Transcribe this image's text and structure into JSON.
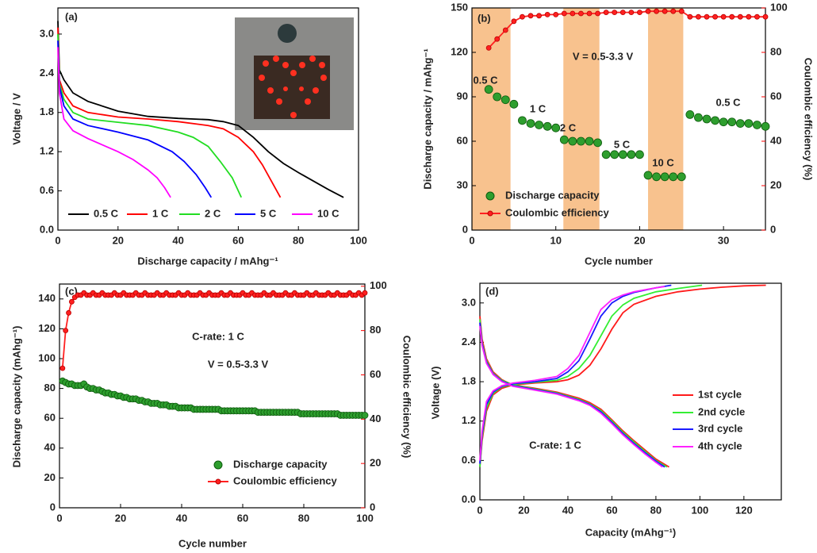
{
  "chart_data": [
    {
      "type": "line",
      "panel": "(a)",
      "xlabel": "Discharge capacity / mAhg⁻¹",
      "ylabel": "Voltage / V",
      "xlim": [
        0,
        100
      ],
      "xticks": [
        0,
        20,
        40,
        60,
        80,
        100
      ],
      "ylim": [
        0,
        3.4
      ],
      "yticks": [
        {
          "value": 0,
          "label": "0.0"
        },
        0.6,
        1.2,
        1.8,
        2.4,
        {
          "value": 3,
          "label": "3.0"
        }
      ],
      "series": [
        {
          "name": "0.5 C",
          "color": "#000000",
          "mode": "lines",
          "x": [
            0,
            0.5,
            2,
            5,
            10,
            20,
            30,
            40,
            50,
            55,
            60,
            65,
            70,
            75,
            80,
            85,
            90,
            95
          ],
          "values": [
            3.2,
            2.45,
            2.3,
            2.1,
            1.97,
            1.82,
            1.74,
            1.71,
            1.69,
            1.66,
            1.6,
            1.42,
            1.2,
            1.02,
            0.88,
            0.75,
            0.62,
            0.5
          ]
        },
        {
          "name": "1 C",
          "color": "#ff0000",
          "mode": "lines",
          "x": [
            0,
            0.5,
            2,
            5,
            10,
            20,
            30,
            40,
            50,
            55,
            60,
            65,
            68,
            71,
            74
          ],
          "values": [
            3.1,
            2.3,
            2.1,
            1.9,
            1.8,
            1.73,
            1.7,
            1.66,
            1.6,
            1.55,
            1.42,
            1.2,
            1.0,
            0.75,
            0.5
          ]
        },
        {
          "name": "2 C",
          "color": "#22dd22",
          "mode": "lines",
          "x": [
            0,
            0.5,
            2,
            5,
            10,
            20,
            30,
            40,
            45,
            50,
            54,
            58,
            61
          ],
          "values": [
            3.0,
            2.25,
            2.0,
            1.8,
            1.7,
            1.65,
            1.6,
            1.5,
            1.42,
            1.28,
            1.05,
            0.8,
            0.5
          ]
        },
        {
          "name": "5 C",
          "color": "#0000ff",
          "mode": "lines",
          "x": [
            0,
            0.5,
            2,
            5,
            10,
            20,
            30,
            38,
            42,
            46,
            49,
            51
          ],
          "values": [
            2.9,
            2.2,
            1.9,
            1.7,
            1.6,
            1.5,
            1.38,
            1.2,
            1.05,
            0.85,
            0.65,
            0.5
          ]
        },
        {
          "name": "10 C",
          "color": "#ff00ff",
          "mode": "lines",
          "x": [
            0,
            0.5,
            2,
            5,
            10,
            15,
            20,
            25,
            30,
            33,
            35.5,
            37.5
          ],
          "values": [
            2.8,
            2.1,
            1.7,
            1.52,
            1.4,
            1.3,
            1.2,
            1.08,
            0.92,
            0.8,
            0.65,
            0.5
          ]
        }
      ]
    },
    {
      "type": "line",
      "panel": "(b)",
      "xlabel": "Cycle number",
      "ylabel": "Discharge capacity / mAhg⁻¹",
      "y2label": "Coulombic efficiency (%)",
      "y2_color": "#ff0000",
      "annotations": [
        "V = 0.5-3.3 V",
        "0.5 C",
        "1 C",
        "2 C",
        "5 C",
        "10 C",
        "0.5 C"
      ],
      "highlight_x": [
        [
          0,
          4.6
        ],
        [
          10.9,
          15.2
        ],
        [
          21,
          25.2
        ]
      ],
      "highlight_color": "#f8c28e",
      "xlim": [
        0,
        35
      ],
      "xticks": [
        0,
        10,
        20,
        30
      ],
      "ylim": [
        0,
        150
      ],
      "yticks": [
        0,
        30,
        60,
        90,
        120,
        150
      ],
      "y2lim": [
        0,
        100
      ],
      "y2ticks": [
        0,
        20,
        40,
        60,
        80,
        100
      ],
      "x": [
        2,
        3,
        4,
        5,
        6,
        7,
        8,
        9,
        10,
        11,
        12,
        13,
        14,
        15,
        16,
        17,
        18,
        19,
        20,
        21,
        22,
        23,
        24,
        25,
        26,
        27,
        28,
        29,
        30,
        31,
        32,
        33,
        34,
        35
      ],
      "series": [
        {
          "name": "Discharge capacity",
          "color": "#2e9e2e",
          "mode": "markers",
          "values": [
            95,
            90,
            88,
            85,
            74,
            72,
            71,
            70,
            69,
            61,
            60,
            60,
            60,
            59,
            51,
            51,
            51,
            51,
            51,
            37,
            36,
            36,
            36,
            36,
            78,
            76,
            75,
            74,
            73,
            73,
            72,
            72,
            71,
            70
          ]
        },
        {
          "name": "Coulombic efficiency",
          "color": "#ff2020",
          "mode": "lines+markers",
          "axis": "y2",
          "values": [
            82,
            86,
            90,
            94,
            96,
            96.5,
            96.5,
            97,
            97,
            97.5,
            97.5,
            97.5,
            97.5,
            97.5,
            98,
            98,
            98,
            98,
            98,
            98.5,
            98.5,
            98.5,
            98.5,
            98.5,
            96,
            96,
            96,
            96,
            96,
            96,
            96,
            96,
            96,
            96
          ]
        }
      ]
    },
    {
      "type": "line",
      "panel": "(c)",
      "xlabel": "Cycle number",
      "ylabel": "Discharge capacity (mAhg⁻¹)",
      "y2label": "Coulombic efficiency (%)",
      "y2_color": "#ff0000",
      "annotations": [
        "C-rate: 1 C",
        "V = 0.5-3.3 V"
      ],
      "xlim": [
        0,
        100
      ],
      "xticks": [
        0,
        20,
        40,
        60,
        80,
        100
      ],
      "ylim": [
        0,
        150
      ],
      "yticks": [
        0,
        20,
        40,
        60,
        80,
        100,
        120,
        140
      ],
      "y2lim": [
        0,
        101
      ],
      "y2ticks": [
        0,
        20,
        40,
        60,
        80,
        100
      ],
      "x": [
        1,
        2,
        3,
        4,
        5,
        6,
        7,
        8,
        9,
        10,
        11,
        12,
        13,
        14,
        15,
        16,
        17,
        18,
        19,
        20,
        21,
        22,
        23,
        24,
        25,
        26,
        27,
        28,
        29,
        30,
        31,
        32,
        33,
        34,
        35,
        36,
        37,
        38,
        39,
        40,
        41,
        42,
        43,
        44,
        45,
        46,
        47,
        48,
        49,
        50,
        51,
        52,
        53,
        54,
        55,
        56,
        57,
        58,
        59,
        60,
        61,
        62,
        63,
        64,
        65,
        66,
        67,
        68,
        69,
        70,
        71,
        72,
        73,
        74,
        75,
        76,
        77,
        78,
        79,
        80,
        81,
        82,
        83,
        84,
        85,
        86,
        87,
        88,
        89,
        90,
        91,
        92,
        93,
        94,
        95,
        96,
        97,
        98,
        99,
        100
      ],
      "series": [
        {
          "name": "Discharge capacity",
          "color": "#2e9e2e",
          "mode": "markers",
          "values": [
            85,
            84,
            83,
            83,
            82,
            82,
            82,
            83,
            81,
            80,
            80,
            79,
            79,
            78,
            77,
            77,
            76,
            76,
            75,
            75,
            74,
            74,
            73,
            73,
            73,
            72,
            72,
            71,
            71,
            70,
            70,
            70,
            69,
            69,
            69,
            68,
            68,
            68,
            67,
            67,
            67,
            67,
            67,
            66,
            66,
            66,
            66,
            66,
            66,
            66,
            66,
            66,
            65,
            65,
            65,
            65,
            65,
            65,
            65,
            65,
            65,
            65,
            65,
            65,
            64,
            64,
            64,
            64,
            64,
            64,
            64,
            64,
            64,
            64,
            64,
            64,
            64,
            64,
            63,
            63,
            63,
            63,
            63,
            63,
            63,
            63,
            63,
            63,
            63,
            63,
            63,
            62,
            62,
            62,
            62,
            62,
            62,
            62,
            62,
            62
          ]
        },
        {
          "name": "Coulombic efficiency",
          "color": "#ff2020",
          "mode": "lines+markers",
          "axis": "y2",
          "values": [
            63,
            80,
            88,
            93,
            95,
            96,
            96,
            97,
            96,
            96,
            97,
            96,
            96,
            97,
            96,
            96,
            96,
            97,
            96,
            96,
            97,
            96,
            96,
            96,
            97,
            96,
            96,
            97,
            96,
            96,
            96,
            97,
            96,
            96,
            97,
            96,
            96,
            96,
            97,
            96,
            96,
            97,
            96,
            96,
            96,
            97,
            96,
            96,
            97,
            96,
            96,
            96,
            97,
            96,
            96,
            97,
            96,
            96,
            96,
            97,
            96,
            96,
            97,
            96,
            96,
            96,
            97,
            96,
            96,
            97,
            96,
            96,
            96,
            97,
            96,
            96,
            97,
            96,
            96,
            96,
            97,
            96,
            96,
            97,
            96,
            96,
            96,
            97,
            96,
            96,
            97,
            96,
            96,
            96,
            97,
            96,
            96,
            97,
            96,
            97
          ]
        }
      ]
    },
    {
      "type": "line",
      "panel": "(d)",
      "xlabel": "Capacity (mAhg⁻¹)",
      "ylabel": "Voltage (V)",
      "annotations": [
        "C-rate: 1 C"
      ],
      "xlim": [
        0,
        137
      ],
      "xticks": [
        0,
        20,
        40,
        60,
        80,
        100,
        120
      ],
      "ylim": [
        0,
        3.3
      ],
      "yticks": [
        {
          "value": 0,
          "label": "0.0"
        },
        0.6,
        1.2,
        1.8,
        2.4,
        {
          "value": 3,
          "label": "3.0"
        }
      ],
      "series": [
        {
          "name": "1st cycle",
          "color": "#ff1a1a",
          "mode": "lines",
          "x": [
            0,
            1,
            3,
            6,
            10,
            15,
            25,
            35,
            45,
            50,
            55,
            60,
            65,
            70,
            75,
            80,
            86,
            86,
            0,
            1,
            3,
            6,
            10,
            15,
            25,
            35,
            40,
            45,
            50,
            55,
            60,
            65,
            70,
            80,
            90,
            100,
            110,
            120,
            130
          ],
          "values": [
            2.8,
            2.45,
            2.15,
            1.95,
            1.83,
            1.75,
            1.7,
            1.64,
            1.55,
            1.48,
            1.38,
            1.22,
            1.05,
            0.9,
            0.76,
            0.62,
            0.5,
            null,
            0.5,
            0.9,
            1.35,
            1.6,
            1.7,
            1.75,
            1.78,
            1.8,
            1.83,
            1.9,
            2.05,
            2.3,
            2.6,
            2.85,
            2.98,
            3.1,
            3.17,
            3.21,
            3.24,
            3.26,
            3.27
          ]
        },
        {
          "name": "2nd cycle",
          "color": "#33ee33",
          "mode": "lines",
          "x": [
            0,
            1,
            3,
            6,
            10,
            15,
            25,
            35,
            45,
            50,
            55,
            60,
            65,
            70,
            75,
            80,
            85,
            85,
            0,
            1,
            3,
            6,
            10,
            15,
            25,
            35,
            40,
            45,
            50,
            55,
            60,
            65,
            70,
            80,
            90,
            101
          ],
          "values": [
            2.75,
            2.4,
            2.12,
            1.93,
            1.82,
            1.75,
            1.69,
            1.63,
            1.53,
            1.46,
            1.36,
            1.2,
            1.03,
            0.88,
            0.74,
            0.6,
            0.5,
            null,
            0.5,
            0.95,
            1.4,
            1.62,
            1.72,
            1.76,
            1.79,
            1.82,
            1.88,
            2.0,
            2.2,
            2.5,
            2.8,
            2.97,
            3.07,
            3.17,
            3.22,
            3.27
          ]
        },
        {
          "name": "3rd cycle",
          "color": "#1a1aff",
          "mode": "lines",
          "x": [
            0,
            1,
            3,
            6,
            10,
            15,
            25,
            35,
            45,
            50,
            55,
            60,
            65,
            70,
            75,
            80,
            84,
            84,
            0,
            1,
            3,
            6,
            10,
            15,
            25,
            35,
            40,
            45,
            50,
            55,
            60,
            65,
            70,
            80,
            87
          ],
          "values": [
            2.7,
            2.38,
            2.1,
            1.92,
            1.81,
            1.74,
            1.68,
            1.62,
            1.52,
            1.45,
            1.34,
            1.18,
            1.01,
            0.86,
            0.72,
            0.59,
            0.5,
            null,
            0.55,
            1.0,
            1.45,
            1.64,
            1.73,
            1.77,
            1.8,
            1.85,
            1.95,
            2.12,
            2.45,
            2.8,
            3.0,
            3.1,
            3.16,
            3.23,
            3.27
          ]
        },
        {
          "name": "4th cycle",
          "color": "#ff22ff",
          "mode": "lines",
          "x": [
            0,
            1,
            3,
            6,
            10,
            15,
            25,
            35,
            45,
            50,
            55,
            60,
            65,
            70,
            75,
            80,
            83,
            83,
            0,
            1,
            3,
            6,
            10,
            15,
            25,
            35,
            40,
            45,
            50,
            55,
            60,
            65,
            70,
            80,
            84
          ],
          "values": [
            2.65,
            2.35,
            2.08,
            1.91,
            1.8,
            1.73,
            1.67,
            1.61,
            1.51,
            1.44,
            1.32,
            1.16,
            0.99,
            0.84,
            0.7,
            0.57,
            0.5,
            null,
            0.6,
            1.05,
            1.5,
            1.66,
            1.74,
            1.78,
            1.82,
            1.88,
            2.0,
            2.2,
            2.55,
            2.9,
            3.05,
            3.12,
            3.17,
            3.23,
            3.25
          ]
        }
      ]
    }
  ]
}
